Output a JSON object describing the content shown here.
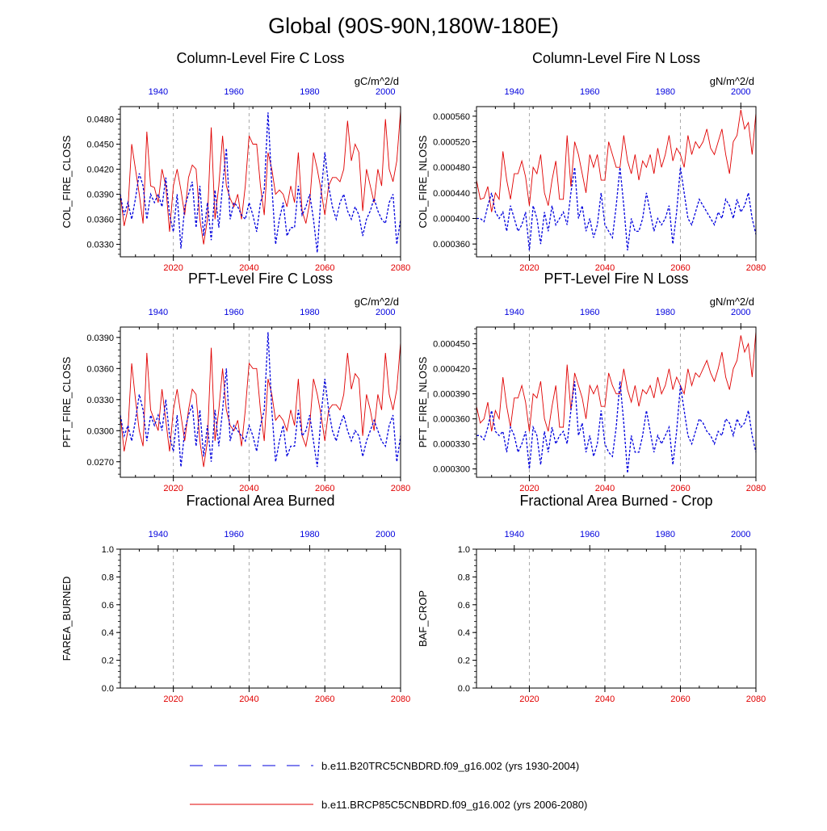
{
  "page_title": "Global (90S-90N,180W-180E)",
  "colors": {
    "red": "#e00000",
    "blue": "#0000dd",
    "grid": "#aaaaaa",
    "axis": "#000000"
  },
  "legend": {
    "blue_label": "b.e11.B20TRC5CNBDRD.f09_g16.002 (yrs 1930-2004)",
    "red_label": "b.e11.BRCP85C5CNBDRD.f09_g16.002 (yrs 2006-2080)"
  },
  "chart_data": [
    {
      "type": "line",
      "title": "Column-Level Fire C Loss",
      "units": "gC/m^2/d",
      "ylabel": "COL_FIRE_CLOSS",
      "ylim": [
        0.0315,
        0.0495
      ],
      "yticks": [
        0.033,
        0.036,
        0.039,
        0.042,
        0.045,
        0.048
      ],
      "ytick_labels": [
        "0.0330",
        "0.0360",
        "0.0390",
        "0.0420",
        "0.0450",
        "0.0480"
      ],
      "bottom_xlim": [
        2006,
        2080
      ],
      "bottom_xticks": [
        2020,
        2040,
        2060,
        2080
      ],
      "top_xlim": [
        1930,
        2004
      ],
      "top_xticks": [
        1940,
        1960,
        1980,
        2000
      ],
      "series": [
        {
          "name": "b.e11.BRCP85C5CNBDRD.f09_g16.002 (yrs 2006-2080)",
          "color": "red",
          "dash": "solid",
          "x_axis": "bottom",
          "values": [
            0.039,
            0.0352,
            0.0372,
            0.045,
            0.042,
            0.039,
            0.0355,
            0.0465,
            0.04,
            0.0398,
            0.038,
            0.042,
            0.04,
            0.0345,
            0.04,
            0.042,
            0.0395,
            0.0365,
            0.041,
            0.0425,
            0.042,
            0.036,
            0.033,
            0.036,
            0.047,
            0.036,
            0.04,
            0.046,
            0.04,
            0.0385,
            0.0375,
            0.039,
            0.036,
            0.04,
            0.046,
            0.045,
            0.045,
            0.04,
            0.0365,
            0.044,
            0.042,
            0.039,
            0.0395,
            0.039,
            0.0375,
            0.04,
            0.038,
            0.044,
            0.037,
            0.0355,
            0.038,
            0.044,
            0.042,
            0.0395,
            0.0365,
            0.04,
            0.041,
            0.041,
            0.0405,
            0.042,
            0.0478,
            0.043,
            0.045,
            0.044,
            0.037,
            0.042,
            0.04,
            0.038,
            0.042,
            0.04,
            0.048,
            0.042,
            0.0405,
            0.043,
            0.049
          ]
        },
        {
          "name": "b.e11.B20TRC5CNBDRD.f09_g16.002 (yrs 1930-2004)",
          "color": "blue",
          "dash": "dash",
          "x_axis": "top",
          "values": [
            0.039,
            0.0365,
            0.038,
            0.036,
            0.0385,
            0.0415,
            0.04,
            0.036,
            0.039,
            0.038,
            0.039,
            0.0375,
            0.041,
            0.0365,
            0.0345,
            0.039,
            0.0325,
            0.0375,
            0.039,
            0.0405,
            0.035,
            0.04,
            0.034,
            0.038,
            0.0335,
            0.0395,
            0.035,
            0.04,
            0.0445,
            0.036,
            0.038,
            0.0375,
            0.0365,
            0.036,
            0.038,
            0.0365,
            0.0345,
            0.038,
            0.0395,
            0.0488,
            0.04,
            0.033,
            0.036,
            0.038,
            0.034,
            0.035,
            0.035,
            0.04,
            0.0365,
            0.0375,
            0.039,
            0.036,
            0.032,
            0.039,
            0.044,
            0.04,
            0.0375,
            0.036,
            0.038,
            0.039,
            0.037,
            0.036,
            0.0375,
            0.0365,
            0.034,
            0.036,
            0.037,
            0.0385,
            0.037,
            0.036,
            0.0355,
            0.038,
            0.039,
            0.033,
            0.036
          ]
        }
      ]
    },
    {
      "type": "line",
      "title": "Column-Level Fire N Loss",
      "units": "gN/m^2/d",
      "ylabel": "COL_FIRE_NLOSS",
      "ylim": [
        0.00034,
        0.000575
      ],
      "yticks": [
        0.00036,
        0.0004,
        0.00044,
        0.00048,
        0.00052,
        0.00056
      ],
      "ytick_labels": [
        "0.000360",
        "0.000400",
        "0.000440",
        "0.000480",
        "0.000520",
        "0.000560"
      ],
      "bottom_xlim": [
        2006,
        2080
      ],
      "bottom_xticks": [
        2020,
        2040,
        2060,
        2080
      ],
      "top_xlim": [
        1930,
        2004
      ],
      "top_xticks": [
        1940,
        1960,
        1980,
        2000
      ],
      "series": [
        {
          "name": "b.e11.BRCP85C5CNBDRD.f09_g16.002 (yrs 2006-2080)",
          "color": "red",
          "dash": "solid",
          "x_axis": "bottom",
          "values": [
            0.00046,
            0.00043,
            0.000432,
            0.00045,
            0.00041,
            0.00044,
            0.00043,
            0.000505,
            0.00046,
            0.00043,
            0.00047,
            0.00047,
            0.00049,
            0.000465,
            0.00042,
            0.00048,
            0.00047,
            0.0005,
            0.00044,
            0.00042,
            0.00046,
            0.00049,
            0.00043,
            0.00043,
            0.00053,
            0.00045,
            0.00052,
            0.0005,
            0.00047,
            0.00044,
            0.0005,
            0.00048,
            0.0005,
            0.00046,
            0.00046,
            0.00052,
            0.0005,
            0.00048,
            0.00048,
            0.00053,
            0.00049,
            0.00047,
            0.0005,
            0.00046,
            0.00049,
            0.00048,
            0.0005,
            0.00047,
            0.00051,
            0.00048,
            0.0005,
            0.00053,
            0.00049,
            0.00051,
            0.0005,
            0.00048,
            0.00053,
            0.0005,
            0.00052,
            0.00051,
            0.00052,
            0.00054,
            0.00051,
            0.0005,
            0.00052,
            0.00054,
            0.0005,
            0.00047,
            0.00052,
            0.00053,
            0.00057,
            0.00054,
            0.00055,
            0.0005,
            0.000565
          ]
        },
        {
          "name": "b.e11.B20TRC5CNBDRD.f09_g16.002 (yrs 1930-2004)",
          "color": "blue",
          "dash": "dash",
          "x_axis": "top",
          "values": [
            0.0004,
            0.0004,
            0.000395,
            0.00042,
            0.00044,
            0.00041,
            0.0004,
            0.00041,
            0.00038,
            0.00042,
            0.0004,
            0.00038,
            0.00039,
            0.00041,
            0.00035,
            0.00042,
            0.0004,
            0.00036,
            0.00041,
            0.00038,
            0.00042,
            0.00039,
            0.0004,
            0.00041,
            0.00039,
            0.00044,
            0.00048,
            0.0004,
            0.00042,
            0.00038,
            0.0004,
            0.00037,
            0.00039,
            0.00044,
            0.00039,
            0.00038,
            0.00037,
            0.00042,
            0.00048,
            0.00042,
            0.00035,
            0.0004,
            0.00038,
            0.00038,
            0.0004,
            0.00044,
            0.00041,
            0.00038,
            0.0004,
            0.00039,
            0.0004,
            0.00042,
            0.00036,
            0.00041,
            0.00048,
            0.00044,
            0.0004,
            0.00039,
            0.00041,
            0.00043,
            0.00042,
            0.00041,
            0.0004,
            0.00039,
            0.00041,
            0.0004,
            0.00043,
            0.00042,
            0.0004,
            0.00043,
            0.00041,
            0.00042,
            0.00044,
            0.0004,
            0.000375
          ]
        }
      ]
    },
    {
      "type": "line",
      "title": "PFT-Level Fire C Loss",
      "units": "gC/m^2/d",
      "ylabel": "PFT_FIRE_CLOSS",
      "ylim": [
        0.0255,
        0.04
      ],
      "yticks": [
        0.027,
        0.03,
        0.033,
        0.036,
        0.039
      ],
      "ytick_labels": [
        "0.0270",
        "0.0300",
        "0.0330",
        "0.0360",
        "0.0390"
      ],
      "bottom_xlim": [
        2006,
        2080
      ],
      "bottom_xticks": [
        2020,
        2040,
        2060,
        2080
      ],
      "top_xlim": [
        1930,
        2004
      ],
      "top_xticks": [
        1940,
        1960,
        1980,
        2000
      ],
      "series": [
        {
          "name": "b.e11.BRCP85C5CNBDRD.f09_g16.002 (yrs 2006-2080)",
          "color": "red",
          "dash": "solid",
          "x_axis": "bottom",
          "values": [
            0.0315,
            0.028,
            0.03,
            0.0365,
            0.033,
            0.03,
            0.0285,
            0.0375,
            0.032,
            0.031,
            0.03,
            0.034,
            0.031,
            0.028,
            0.032,
            0.034,
            0.0315,
            0.029,
            0.032,
            0.034,
            0.0335,
            0.029,
            0.0265,
            0.029,
            0.038,
            0.029,
            0.032,
            0.036,
            0.032,
            0.0305,
            0.03,
            0.031,
            0.0285,
            0.032,
            0.0365,
            0.036,
            0.036,
            0.032,
            0.029,
            0.035,
            0.0335,
            0.031,
            0.0315,
            0.031,
            0.03,
            0.032,
            0.0305,
            0.035,
            0.0295,
            0.0285,
            0.0305,
            0.035,
            0.0335,
            0.0315,
            0.029,
            0.032,
            0.0325,
            0.0325,
            0.032,
            0.0335,
            0.0375,
            0.034,
            0.0355,
            0.035,
            0.0295,
            0.0335,
            0.032,
            0.03,
            0.0335,
            0.032,
            0.0375,
            0.0335,
            0.032,
            0.034,
            0.0385
          ]
        },
        {
          "name": "b.e11.B20TRC5CNBDRD.f09_g16.002 (yrs 1930-2004)",
          "color": "blue",
          "dash": "dash",
          "x_axis": "top",
          "values": [
            0.0315,
            0.0295,
            0.0305,
            0.029,
            0.031,
            0.0335,
            0.032,
            0.029,
            0.0315,
            0.0305,
            0.0315,
            0.03,
            0.033,
            0.0295,
            0.028,
            0.0315,
            0.0265,
            0.03,
            0.0315,
            0.0325,
            0.0285,
            0.032,
            0.0275,
            0.0305,
            0.027,
            0.032,
            0.0285,
            0.032,
            0.036,
            0.029,
            0.0305,
            0.03,
            0.0295,
            0.029,
            0.0305,
            0.0295,
            0.028,
            0.0305,
            0.032,
            0.0395,
            0.032,
            0.027,
            0.029,
            0.0305,
            0.0275,
            0.0285,
            0.0285,
            0.032,
            0.0295,
            0.03,
            0.0315,
            0.029,
            0.0265,
            0.0315,
            0.035,
            0.032,
            0.03,
            0.029,
            0.0305,
            0.0315,
            0.03,
            0.029,
            0.03,
            0.0295,
            0.0275,
            0.029,
            0.03,
            0.031,
            0.03,
            0.029,
            0.0285,
            0.0305,
            0.0315,
            0.027,
            0.0295
          ]
        }
      ]
    },
    {
      "type": "line",
      "title": "PFT-Level Fire N Loss",
      "units": "gN/m^2/d",
      "ylabel": "PFT_FIRE_NLOSS",
      "ylim": [
        0.00029,
        0.00047
      ],
      "yticks": [
        0.0003,
        0.00033,
        0.00036,
        0.00039,
        0.00042,
        0.00045
      ],
      "ytick_labels": [
        "0.000300",
        "0.000330",
        "0.000360",
        "0.000390",
        "0.000420",
        "0.000450"
      ],
      "bottom_xlim": [
        2006,
        2080
      ],
      "bottom_xticks": [
        2020,
        2040,
        2060,
        2080
      ],
      "top_xlim": [
        1930,
        2004
      ],
      "top_xticks": [
        1940,
        1960,
        1980,
        2000
      ],
      "series": [
        {
          "name": "b.e11.BRCP85C5CNBDRD.f09_g16.002 (yrs 2006-2080)",
          "color": "red",
          "dash": "solid",
          "x_axis": "bottom",
          "values": [
            0.000375,
            0.000355,
            0.00036,
            0.00038,
            0.000345,
            0.00037,
            0.00036,
            0.00041,
            0.000375,
            0.00035,
            0.000385,
            0.000385,
            0.0004,
            0.00038,
            0.000345,
            0.00039,
            0.000385,
            0.000405,
            0.00036,
            0.000345,
            0.000375,
            0.0004,
            0.00035,
            0.00035,
            0.000425,
            0.00037,
            0.000415,
            0.0004,
            0.000385,
            0.00036,
            0.0004,
            0.00039,
            0.0004,
            0.000375,
            0.000375,
            0.000415,
            0.0004,
            0.00039,
            0.00039,
            0.00042,
            0.000395,
            0.00038,
            0.0004,
            0.000375,
            0.000395,
            0.00039,
            0.0004,
            0.000385,
            0.00041,
            0.00039,
            0.0004,
            0.00042,
            0.000395,
            0.00041,
            0.0004,
            0.00039,
            0.00042,
            0.0004,
            0.000415,
            0.00041,
            0.00042,
            0.00043,
            0.000415,
            0.000405,
            0.00042,
            0.00044,
            0.00041,
            0.000395,
            0.00042,
            0.00043,
            0.00046,
            0.00044,
            0.00045,
            0.00041,
            0.000465
          ]
        },
        {
          "name": "b.e11.B20TRC5CNBDRD.f09_g16.002 (yrs 1930-2004)",
          "color": "blue",
          "dash": "dash",
          "x_axis": "top",
          "values": [
            0.00034,
            0.00034,
            0.000335,
            0.00035,
            0.00037,
            0.000345,
            0.00034,
            0.000345,
            0.00032,
            0.00035,
            0.00034,
            0.00032,
            0.00033,
            0.000345,
            0.0003,
            0.00035,
            0.00034,
            0.000305,
            0.000345,
            0.00032,
            0.00035,
            0.00033,
            0.00034,
            0.000345,
            0.00033,
            0.00037,
            0.000405,
            0.00034,
            0.000355,
            0.00032,
            0.00034,
            0.000315,
            0.00033,
            0.00037,
            0.00033,
            0.00032,
            0.000315,
            0.00035,
            0.000405,
            0.000355,
            0.000295,
            0.00034,
            0.00032,
            0.00032,
            0.00034,
            0.00037,
            0.000345,
            0.00032,
            0.00034,
            0.00033,
            0.00034,
            0.00035,
            0.000305,
            0.000345,
            0.0004,
            0.00037,
            0.00034,
            0.00033,
            0.000345,
            0.00036,
            0.000355,
            0.000345,
            0.00034,
            0.00033,
            0.000345,
            0.00034,
            0.00036,
            0.000355,
            0.00034,
            0.00036,
            0.00035,
            0.000355,
            0.00037,
            0.00034,
            0.00032
          ]
        }
      ]
    },
    {
      "type": "line",
      "title": "Fractional Area Burned",
      "units": "",
      "ylabel": "FAREA_BURNED",
      "ylim": [
        0.0,
        1.0
      ],
      "yticks": [
        0.0,
        0.2,
        0.4,
        0.6,
        0.8,
        1.0
      ],
      "ytick_labels": [
        "0.0",
        "0.2",
        "0.4",
        "0.6",
        "0.8",
        "1.0"
      ],
      "bottom_xlim": [
        2006,
        2080
      ],
      "bottom_xticks": [
        2020,
        2040,
        2060,
        2080
      ],
      "top_xlim": [
        1930,
        2004
      ],
      "top_xticks": [
        1940,
        1960,
        1980,
        2000
      ],
      "series": []
    },
    {
      "type": "line",
      "title": "Fractional Area Burned - Crop",
      "units": "",
      "ylabel": "BAF_CROP",
      "ylim": [
        0.0,
        1.0
      ],
      "yticks": [
        0.0,
        0.2,
        0.4,
        0.6,
        0.8,
        1.0
      ],
      "ytick_labels": [
        "0.0",
        "0.2",
        "0.4",
        "0.6",
        "0.8",
        "1.0"
      ],
      "bottom_xlim": [
        2006,
        2080
      ],
      "bottom_xticks": [
        2020,
        2040,
        2060,
        2080
      ],
      "top_xlim": [
        1930,
        2004
      ],
      "top_xticks": [
        1940,
        1960,
        1980,
        2000
      ],
      "series": []
    }
  ]
}
